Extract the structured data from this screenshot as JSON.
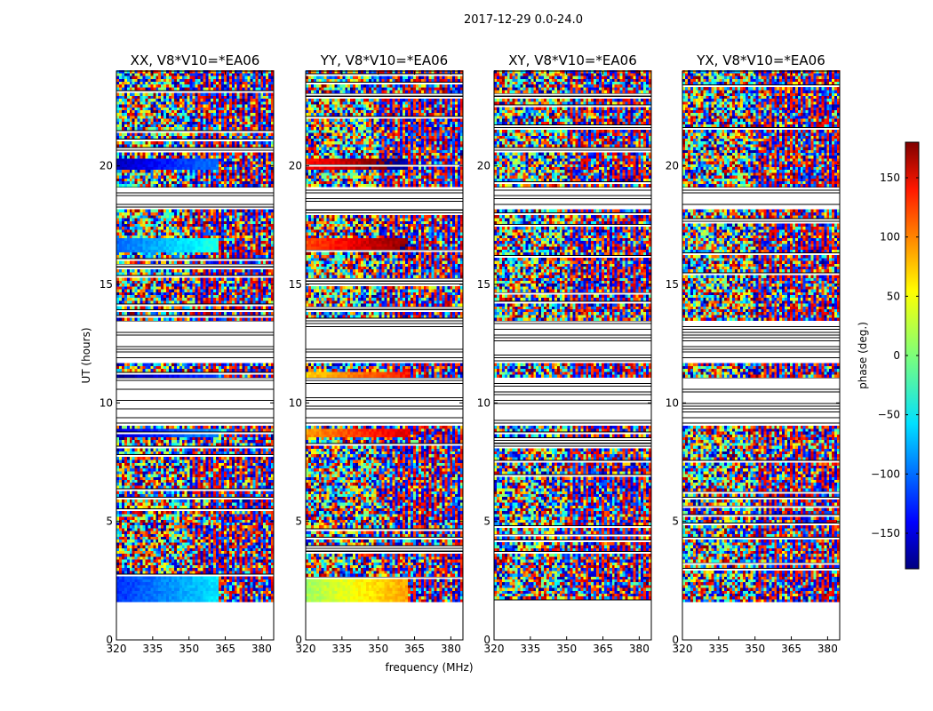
{
  "figure_title": "2017-12-29 0.0-24.0",
  "chart_data": {
    "type": "heatmap",
    "xlabel": "frequency (MHz)",
    "ylabel": "UT (hours)",
    "xlim": [
      320,
      385
    ],
    "ylim": [
      0,
      24
    ],
    "x_ticks": [
      320,
      335,
      350,
      365,
      380
    ],
    "y_ticks": [
      0,
      5,
      10,
      15,
      20
    ],
    "panels": [
      {
        "title": "XX, V8*V10=*EA06"
      },
      {
        "title": "YY, V8*V10=*EA06"
      },
      {
        "title": "XY, V8*V10=*EA06"
      },
      {
        "title": "YX, V8*V10=*EA06"
      }
    ],
    "data_time_range": [
      1.6,
      24.0
    ],
    "blank_time_bands": [
      [
        0,
        1.6
      ],
      [
        9.0,
        11.0
      ],
      [
        11.6,
        13.4
      ],
      [
        18.1,
        19.1
      ]
    ],
    "coherent_bands": {
      "XX": [
        [
          1.6,
          2.6,
          -120
        ],
        [
          8.5,
          8.9,
          -150
        ],
        [
          10.9,
          11.3,
          -175
        ],
        [
          16.3,
          16.9,
          -100
        ],
        [
          19.8,
          20.3,
          -160
        ]
      ],
      "YY": [
        [
          1.6,
          2.6,
          10
        ],
        [
          8.5,
          8.9,
          80
        ],
        [
          10.9,
          11.3,
          60
        ],
        [
          16.3,
          16.9,
          110
        ],
        [
          19.8,
          20.3,
          130
        ]
      ],
      "XY": [],
      "YX": []
    },
    "colorbar": {
      "label": "phase (deg.)",
      "range": [
        -180,
        180
      ],
      "ticks": [
        150,
        100,
        50,
        0,
        -50,
        -100,
        -150
      ],
      "colormap": "jet"
    }
  }
}
